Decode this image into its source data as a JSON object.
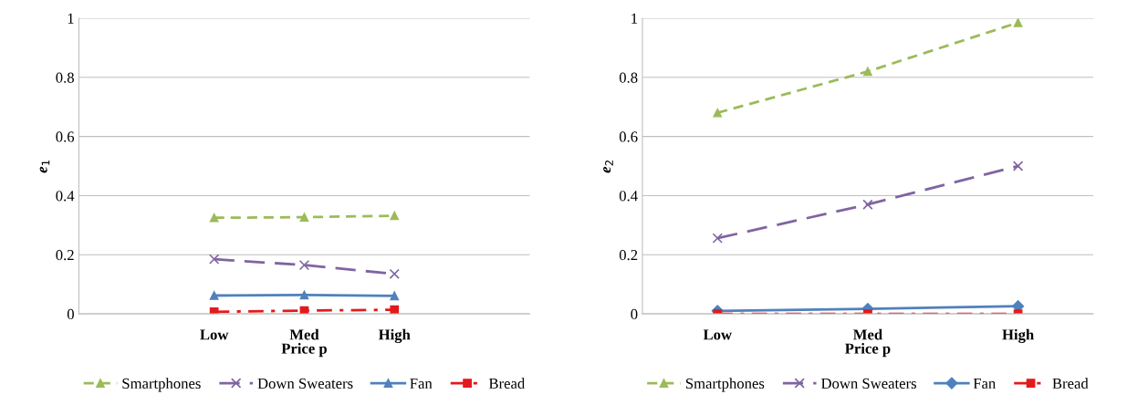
{
  "chart_data": [
    {
      "type": "line",
      "ylabel": "e$_{1}$",
      "xlabel": "Price p",
      "categories": [
        null,
        "Low",
        "Med",
        "High",
        null
      ],
      "ylim": [
        0,
        1
      ],
      "yticks": [
        0,
        0.2,
        0.4,
        0.6,
        0.8,
        1
      ],
      "grid": "y",
      "legend": "bottom",
      "series": [
        {
          "name": "Smartphones",
          "color": "#9bbb59",
          "marker": "triangle",
          "line_style": "dashed",
          "values": [
            null,
            0.325,
            0.327,
            0.332,
            null
          ]
        },
        {
          "name": "Down Sweaters",
          "color": "#8064a2",
          "marker": "cross",
          "line_style": "dashed",
          "values": [
            null,
            0.185,
            0.165,
            0.135,
            null
          ]
        },
        {
          "name": "Fan",
          "color": "#4f81bd",
          "marker": "triangle",
          "line_style": "solid",
          "values": [
            null,
            0.062,
            0.064,
            0.061,
            null
          ]
        },
        {
          "name": "Bread",
          "color": "#e31a1c",
          "marker": "square",
          "line_style": "dashdot",
          "values": [
            null,
            0.007,
            0.011,
            0.014,
            null
          ]
        }
      ]
    },
    {
      "type": "line",
      "ylabel": "e$_{2}$",
      "xlabel": "Price p",
      "categories": [
        "Low",
        "Med",
        "High"
      ],
      "ylim": [
        0,
        1
      ],
      "yticks": [
        0,
        0.2,
        0.4,
        0.6,
        0.8,
        1
      ],
      "grid": "y",
      "legend": "bottom",
      "series": [
        {
          "name": "Smartphones",
          "color": "#9bbb59",
          "marker": "triangle",
          "line_style": "dashed",
          "values": [
            0.68,
            0.82,
            0.985
          ]
        },
        {
          "name": "Down Sweaters",
          "color": "#8064a2",
          "marker": "cross",
          "line_style": "dashed",
          "values": [
            0.256,
            0.37,
            0.5
          ]
        },
        {
          "name": "Fan",
          "color": "#4f81bd",
          "marker": "diamond",
          "line_style": "solid",
          "values": [
            0.01,
            0.017,
            0.026
          ]
        },
        {
          "name": "Bread",
          "color": "#e31a1c",
          "marker": "square",
          "line_style": "dashdot",
          "values": [
            0.0,
            0.0,
            0.0
          ]
        }
      ]
    }
  ]
}
